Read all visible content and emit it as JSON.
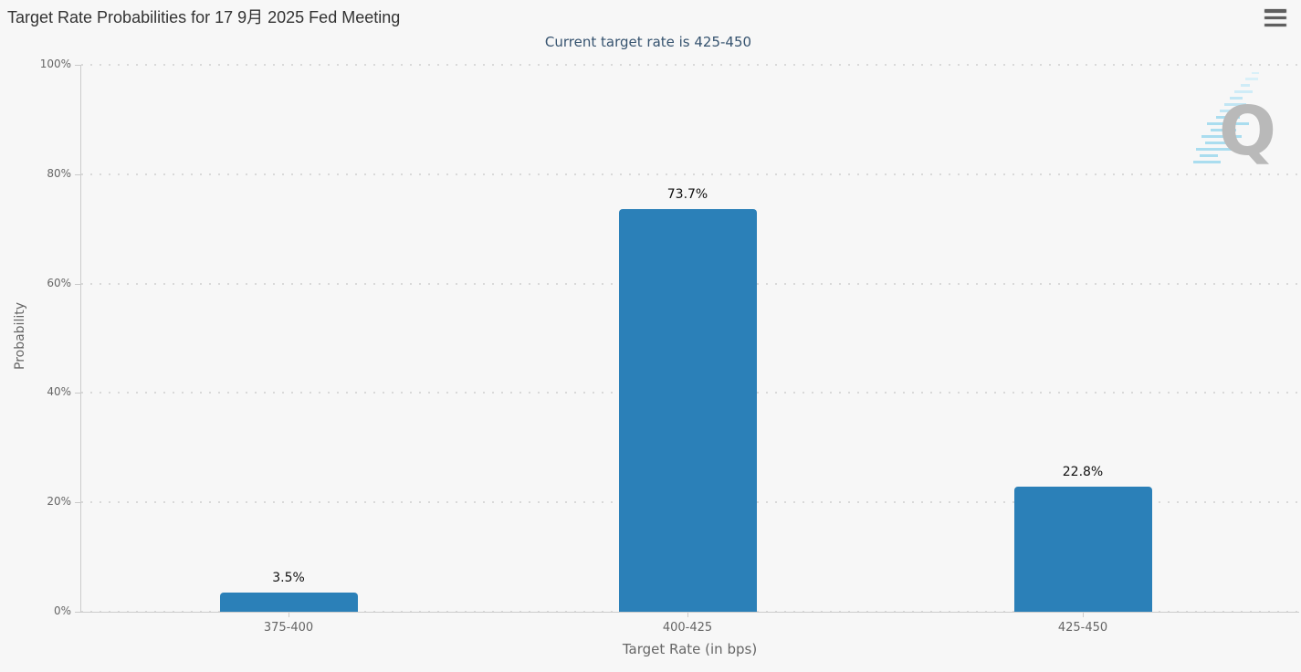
{
  "header": {
    "menu_icon": "hamburger"
  },
  "chart_data": {
    "type": "bar",
    "title": "Target Rate Probabilities for 17 9月 2025 Fed Meeting",
    "subtitle": "Current target rate is 425-450",
    "categories": [
      "375-400",
      "400-425",
      "425-450"
    ],
    "values": [
      3.5,
      73.7,
      22.8
    ],
    "value_labels": [
      "3.5%",
      "73.7%",
      "22.8%"
    ],
    "xlabel": "Target Rate (in bps)",
    "ylabel": "Probability",
    "ylim": [
      0,
      100
    ],
    "y_ticks": [
      "0%",
      "20%",
      "40%",
      "60%",
      "80%",
      "100%"
    ],
    "y_tick_step": 20,
    "grid": "dotted-horizontal",
    "legend": false,
    "bar_color": "#2b80b8",
    "subtitle_color": "#36536f",
    "title_color": "#333333",
    "watermark_letter": "Q"
  }
}
